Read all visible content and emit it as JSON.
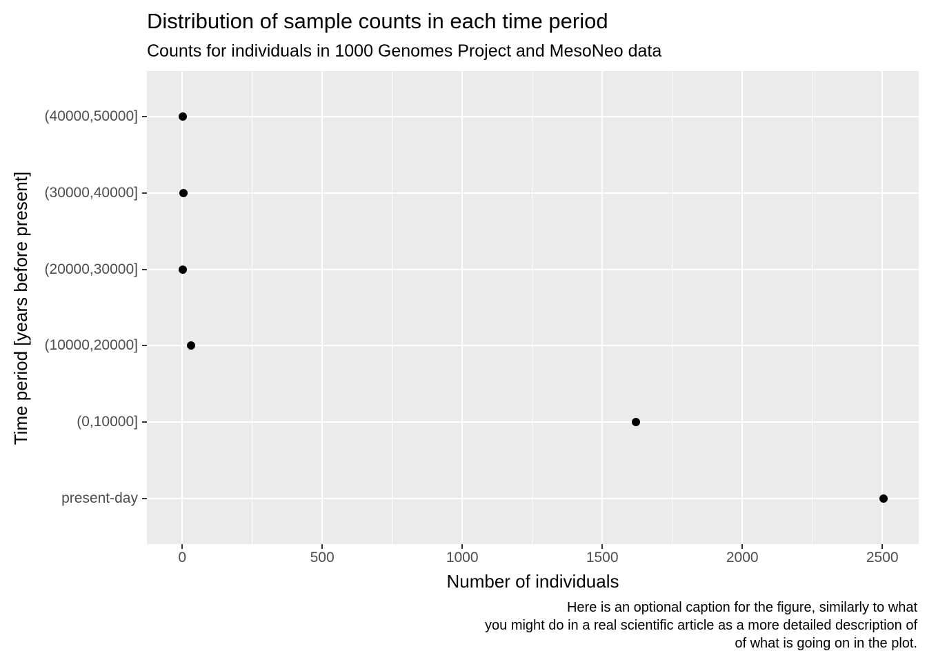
{
  "chart_data": {
    "type": "scatter",
    "orientation": "horizontal",
    "title": "Distribution of sample counts in each time period",
    "subtitle": "Counts for individuals in 1000 Genomes Project and MesoNeo data",
    "caption": "Here is an optional caption for the figure, similarly to what\nyou might do in a real scientific article as a more detailed description of\nof what is going on in the plot.",
    "xlabel": "Number of individuals",
    "ylabel": "Time period [years before present]",
    "categories": [
      "(40000,50000]",
      "(30000,40000]",
      "(20000,30000]",
      "(10000,20000]",
      "(0,10000]",
      "present-day"
    ],
    "values": [
      1,
      5,
      2,
      32,
      1620,
      2504
    ],
    "x_ticks": [
      0,
      500,
      1000,
      1500,
      2000,
      2500
    ],
    "x_minor_ticks": [
      250,
      750,
      1250,
      1750,
      2250
    ],
    "xlim": [
      -126,
      2630
    ],
    "grid": true,
    "legend": "none",
    "colors": {
      "panel_bg": "#EBEBEB",
      "grid": "#FFFFFF",
      "point": "#000000",
      "axis_text": "#4D4D4D",
      "tick_mark": "#333333",
      "title_text": "#000000"
    }
  }
}
